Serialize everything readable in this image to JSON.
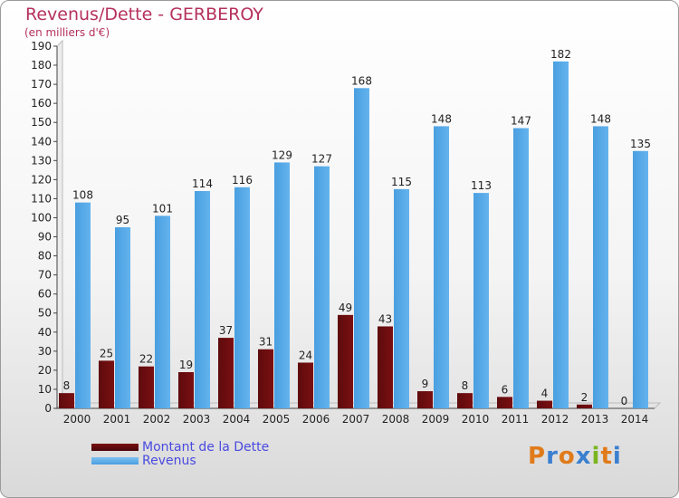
{
  "title": "Revenus/Dette - GERBEROY",
  "subtitle": "(en milliers d'€)",
  "logo": "Proxiti",
  "chart_data": {
    "type": "bar",
    "categories": [
      "2000",
      "2001",
      "2002",
      "2003",
      "2004",
      "2005",
      "2006",
      "2007",
      "2008",
      "2009",
      "2010",
      "2011",
      "2012",
      "2013",
      "2014"
    ],
    "series": [
      {
        "name": "Montant de la Dette",
        "color": "#7a0f12",
        "values": [
          8,
          25,
          22,
          19,
          37,
          31,
          24,
          49,
          43,
          9,
          8,
          6,
          4,
          2,
          0
        ]
      },
      {
        "name": "Revenus",
        "color": "#4a9fe0",
        "values": [
          108,
          95,
          101,
          114,
          116,
          129,
          127,
          168,
          115,
          148,
          113,
          147,
          182,
          148,
          135
        ]
      }
    ],
    "ylim": [
      0,
      190
    ],
    "yticks": [
      0,
      10,
      20,
      30,
      40,
      50,
      60,
      70,
      80,
      90,
      100,
      110,
      120,
      130,
      140,
      150,
      160,
      170,
      180,
      190
    ],
    "grid": false,
    "legend_position": "bottom-left"
  }
}
